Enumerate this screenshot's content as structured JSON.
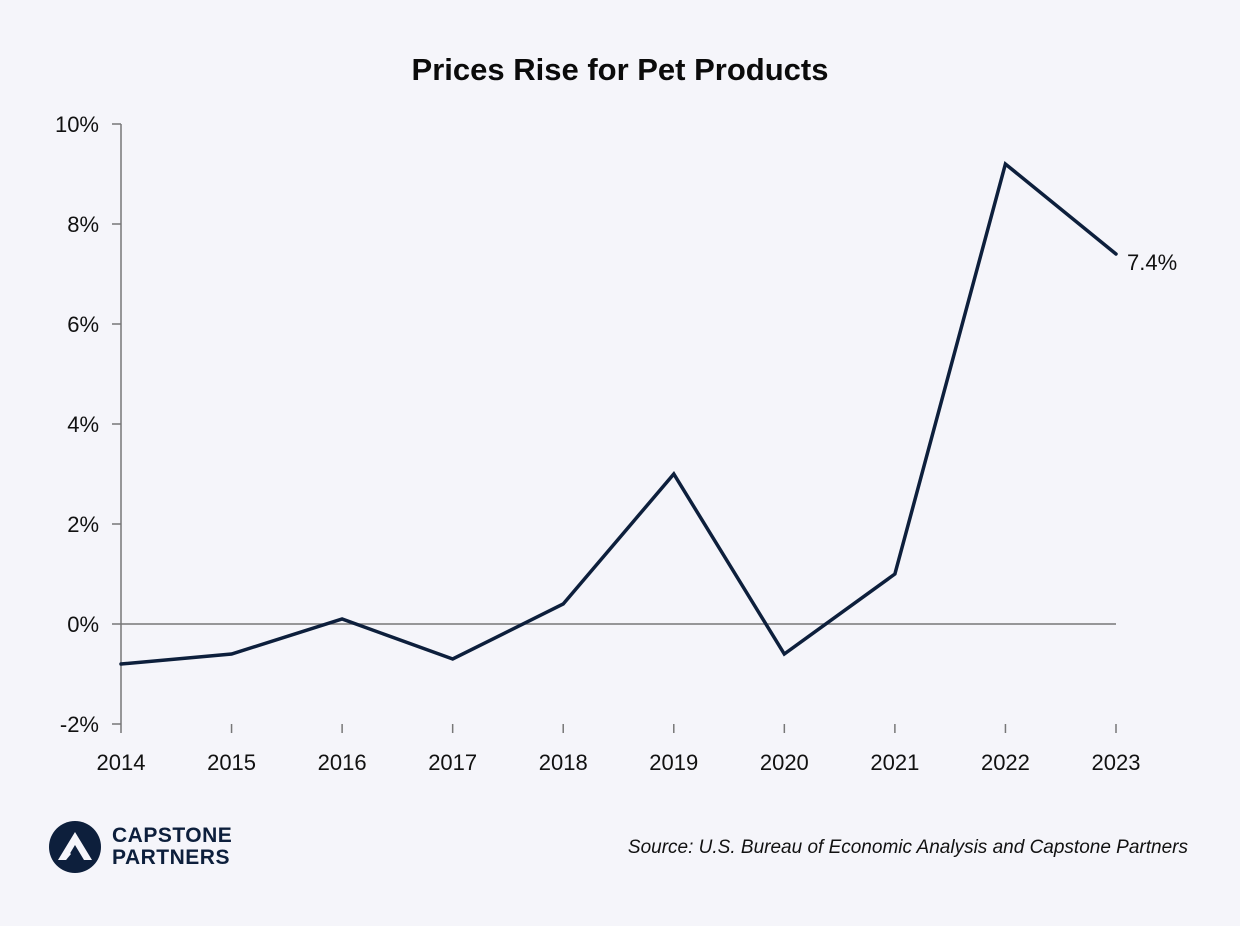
{
  "chart_data": {
    "type": "line",
    "title": "Prices Rise for Pet Products",
    "xlabel": "",
    "ylabel": "",
    "x": [
      "2014",
      "2015",
      "2016",
      "2017",
      "2018",
      "2019",
      "2020",
      "2021",
      "2022",
      "2023"
    ],
    "series": [
      {
        "values": [
          -0.8,
          -0.6,
          0.1,
          -0.7,
          0.4,
          3.0,
          -0.6,
          1.0,
          9.2,
          7.4
        ]
      }
    ],
    "ylim": [
      -2,
      10
    ],
    "yticks": [
      -2,
      0,
      2,
      4,
      6,
      8,
      10
    ],
    "ytick_labels": [
      "-2%",
      "0%",
      "2%",
      "4%",
      "6%",
      "8%",
      "10%"
    ],
    "end_label": "7.4%",
    "grid": false,
    "zero_line": true,
    "line_color": "#0d1f3c",
    "axis_color": "#777777"
  },
  "source_note": "Source: U.S. Bureau of Economic Analysis and Capstone Partners",
  "logo": {
    "line1": "CAPSTONE",
    "line2": "PARTNERS",
    "color": "#0d1f3c"
  }
}
